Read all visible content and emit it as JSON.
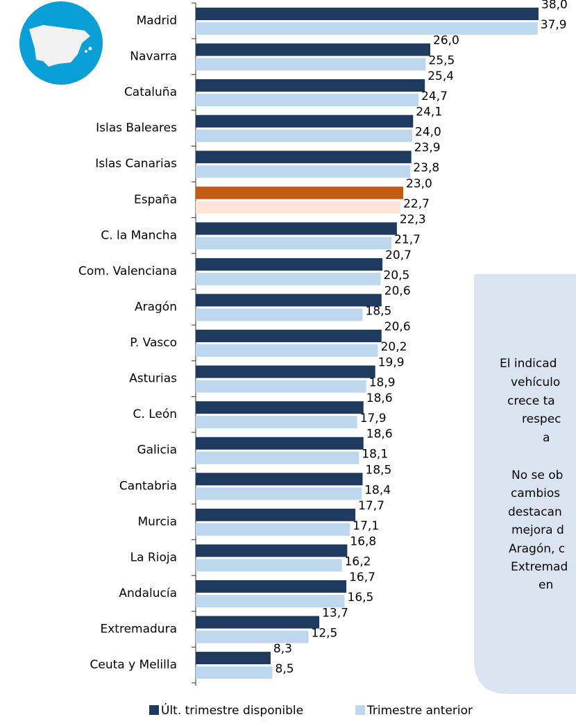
{
  "chart_data": {
    "type": "hbar",
    "categories": [
      "Madrid",
      "Navarra",
      "Cataluña",
      "Islas Baleares",
      "Islas Canarias",
      "España",
      "C. la Mancha",
      "Com. Valenciana",
      "Aragón",
      "P. Vasco",
      "Asturias",
      "C. León",
      "Galicia",
      "Cantabria",
      "Murcia",
      "La Rioja",
      "Andalucía",
      "Extremadura",
      "Ceuta y Melilla"
    ],
    "series": [
      {
        "name": "Últ. trimestre disponible",
        "color": "#1f3a5f",
        "highlight_color": "#c55a11",
        "values": [
          38.0,
          26.0,
          25.4,
          24.1,
          23.9,
          23.0,
          22.3,
          20.7,
          20.6,
          20.6,
          19.9,
          18.6,
          18.6,
          18.5,
          17.7,
          16.8,
          16.7,
          13.7,
          8.3
        ],
        "value_labels": [
          "38,0",
          "26,0",
          "25,4",
          "24,1",
          "23,9",
          "23,0",
          "22,3",
          "20,7",
          "20,6",
          "20,6",
          "19,9",
          "18,6",
          "18,6",
          "18,5",
          "17,7",
          "16,8",
          "16,7",
          "13,7",
          "8,3"
        ]
      },
      {
        "name": "Trimestre anterior",
        "color": "#bdd7ee",
        "highlight_color": "#fce4d6",
        "values": [
          37.9,
          25.5,
          24.7,
          24.0,
          23.8,
          22.7,
          21.7,
          20.5,
          18.5,
          20.2,
          18.9,
          17.9,
          18.1,
          18.4,
          17.1,
          16.2,
          16.5,
          12.5,
          8.5
        ],
        "value_labels": [
          "37,9",
          "25,5",
          "24,7",
          "24,0",
          "23,8",
          "22,7",
          "21,7",
          "20,5",
          "18,5",
          "20,2",
          "18,9",
          "17,9",
          "18,1",
          "18,4",
          "17,1",
          "16,2",
          "16,5",
          "12,5",
          "8,5"
        ]
      }
    ],
    "highlight_category": "España",
    "legend": "bottom",
    "annotation": {
      "lines": [
        "El indicad",
        "vehículo",
        "crece ta",
        "respec",
        "a",
        "No se ob",
        "cambios",
        "destacan",
        "mejora d",
        "Aragón, c",
        "Extremad",
        "en"
      ]
    }
  }
}
